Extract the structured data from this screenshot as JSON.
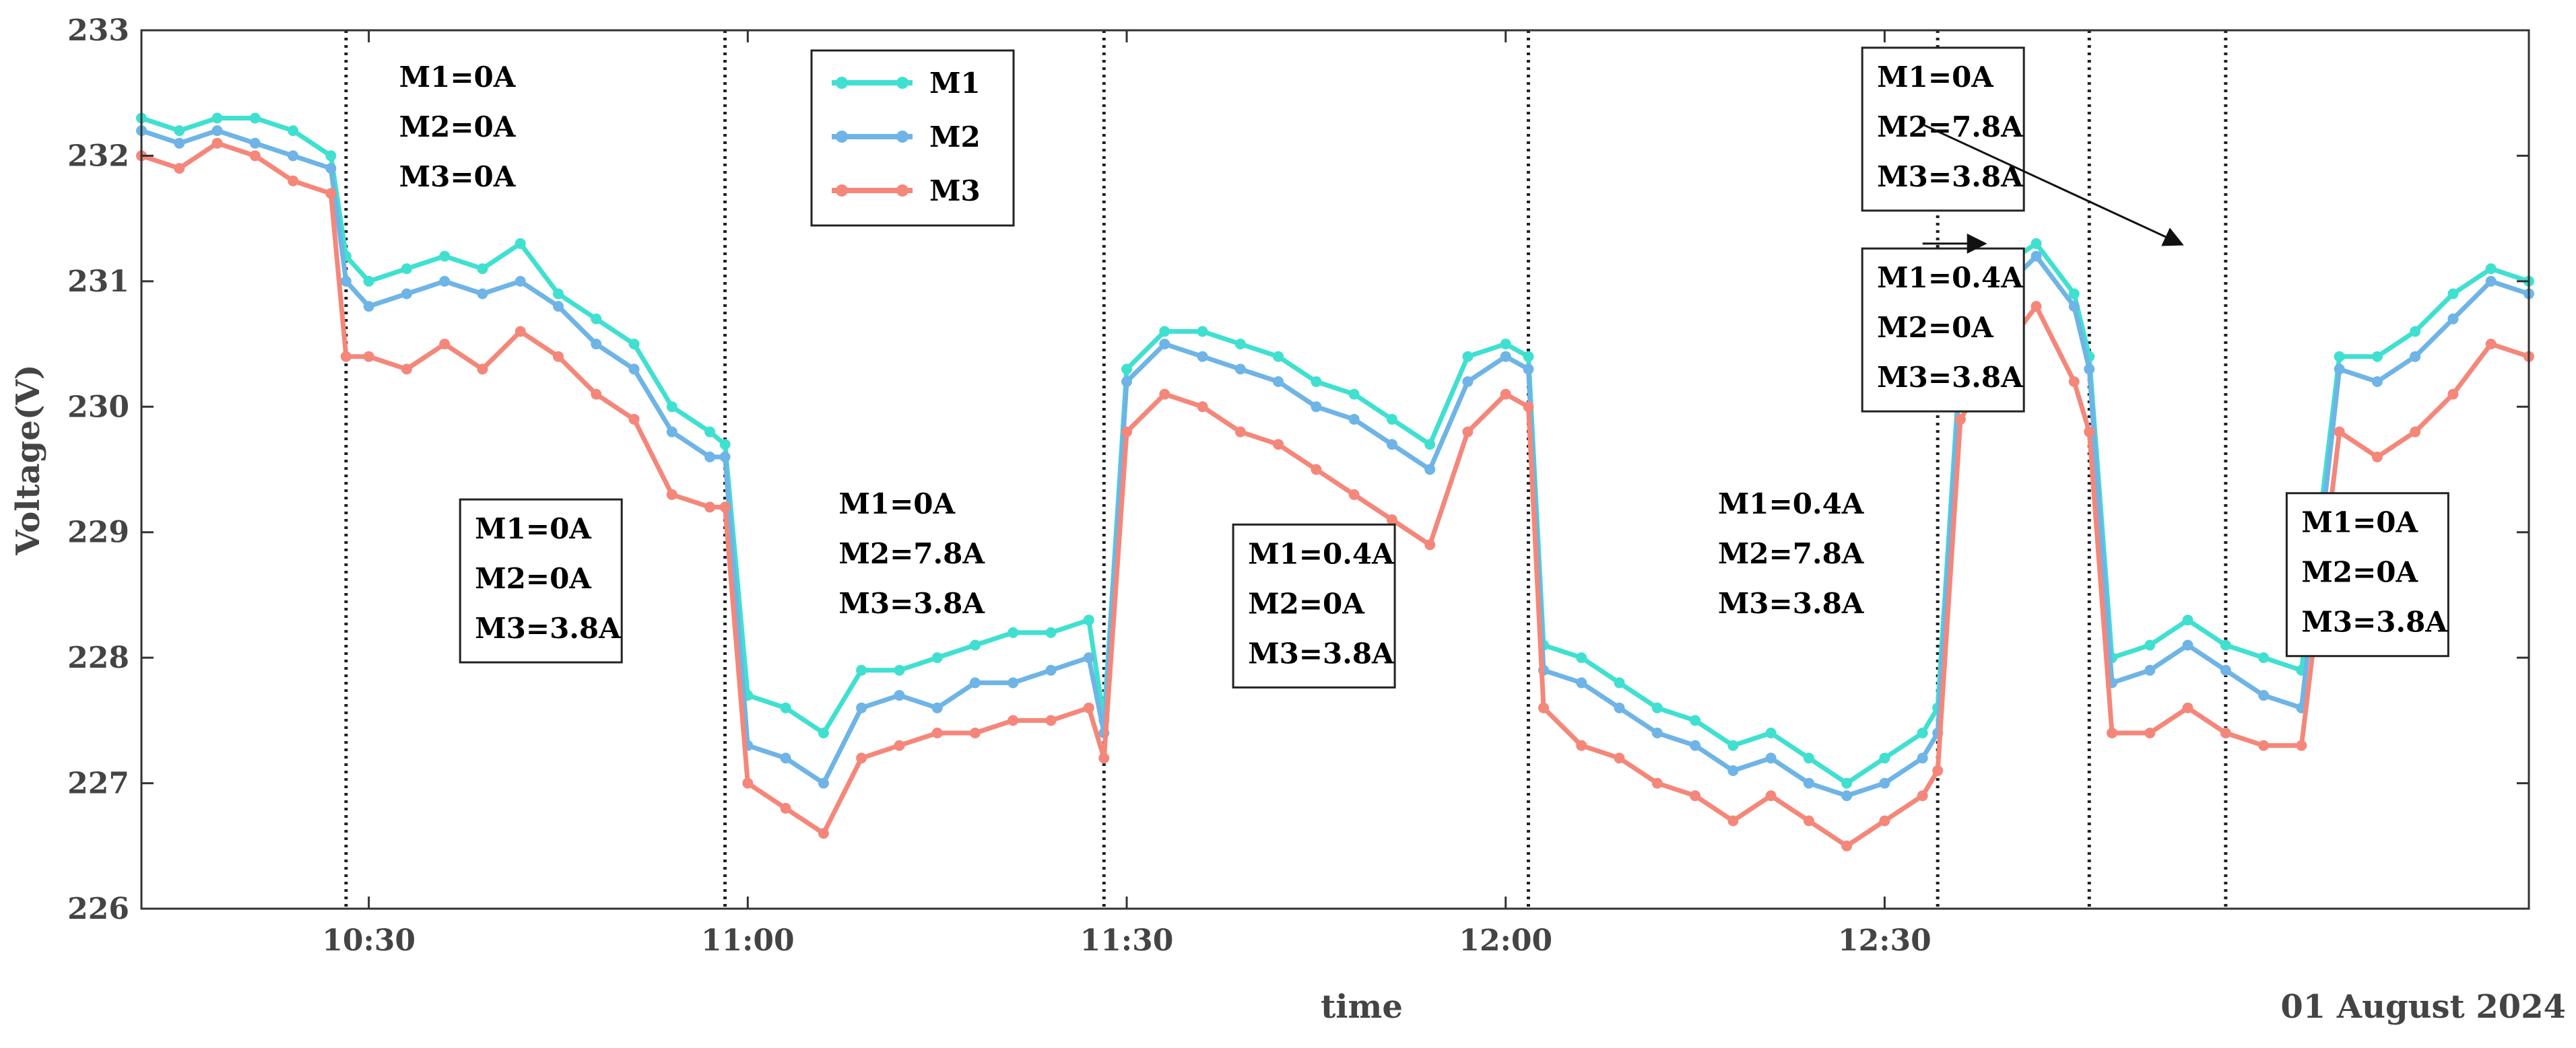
{
  "chart_data": {
    "type": "line",
    "title": "",
    "xlabel": "time",
    "ylabel": "Voltage(V)",
    "date_label": "01 August 2024",
    "xlim": [
      10.2,
      13.35
    ],
    "ylim": [
      226,
      233
    ],
    "yticks": [
      226,
      227,
      228,
      229,
      230,
      231,
      232,
      233
    ],
    "ytick_labels": [
      "226",
      "227",
      "228",
      "229",
      "230",
      "231",
      "232",
      "233"
    ],
    "xticks": [
      10.5,
      11.0,
      11.5,
      12.0,
      12.5
    ],
    "xtick_labels": [
      "10:30",
      "11:00",
      "11:30",
      "12:00",
      "12:30"
    ],
    "event_lines": [
      10.47,
      10.97,
      11.47,
      12.03,
      12.57,
      12.77,
      12.95
    ],
    "legend": {
      "position": "top-center",
      "entries": [
        "M1",
        "M2",
        "M3"
      ]
    },
    "series": [
      {
        "name": "M1",
        "color": "#40E0D0",
        "x": [
          10.2,
          10.25,
          10.3,
          10.35,
          10.4,
          10.45,
          10.47,
          10.5,
          10.55,
          10.6,
          10.65,
          10.7,
          10.75,
          10.8,
          10.85,
          10.9,
          10.95,
          10.97,
          11.0,
          11.05,
          11.1,
          11.15,
          11.2,
          11.25,
          11.3,
          11.35,
          11.4,
          11.45,
          11.47,
          11.5,
          11.55,
          11.6,
          11.65,
          11.7,
          11.75,
          11.8,
          11.85,
          11.9,
          11.95,
          12.0,
          12.03,
          12.05,
          12.1,
          12.15,
          12.2,
          12.25,
          12.3,
          12.35,
          12.4,
          12.45,
          12.5,
          12.55,
          12.57,
          12.6,
          12.65,
          12.7,
          12.75,
          12.77,
          12.8,
          12.85,
          12.9,
          12.95,
          13.0,
          13.05,
          13.1,
          13.15,
          13.2,
          13.25,
          13.3,
          13.35
        ],
        "y": [
          232.3,
          232.2,
          232.3,
          232.3,
          232.2,
          232.0,
          231.2,
          231.0,
          231.1,
          231.2,
          231.1,
          231.3,
          230.9,
          230.7,
          230.5,
          230.0,
          229.8,
          229.7,
          227.7,
          227.6,
          227.4,
          227.9,
          227.9,
          228.0,
          228.1,
          228.2,
          228.2,
          228.3,
          227.5,
          230.3,
          230.6,
          230.6,
          230.5,
          230.4,
          230.2,
          230.1,
          229.9,
          229.7,
          230.4,
          230.5,
          230.4,
          228.1,
          228.0,
          227.8,
          227.6,
          227.5,
          227.3,
          227.4,
          227.2,
          227.0,
          227.2,
          227.4,
          227.6,
          230.4,
          231.1,
          231.3,
          230.9,
          230.4,
          228.0,
          228.1,
          228.3,
          228.1,
          228.0,
          227.9,
          230.4,
          230.4,
          230.6,
          230.9,
          231.1,
          231.0
        ]
      },
      {
        "name": "M2",
        "color": "#6EB4E6",
        "x": [
          10.2,
          10.25,
          10.3,
          10.35,
          10.4,
          10.45,
          10.47,
          10.5,
          10.55,
          10.6,
          10.65,
          10.7,
          10.75,
          10.8,
          10.85,
          10.9,
          10.95,
          10.97,
          11.0,
          11.05,
          11.1,
          11.15,
          11.2,
          11.25,
          11.3,
          11.35,
          11.4,
          11.45,
          11.47,
          11.5,
          11.55,
          11.6,
          11.65,
          11.7,
          11.75,
          11.8,
          11.85,
          11.9,
          11.95,
          12.0,
          12.03,
          12.05,
          12.1,
          12.15,
          12.2,
          12.25,
          12.3,
          12.35,
          12.4,
          12.45,
          12.5,
          12.55,
          12.57,
          12.6,
          12.65,
          12.7,
          12.75,
          12.77,
          12.8,
          12.85,
          12.9,
          12.95,
          13.0,
          13.05,
          13.1,
          13.15,
          13.2,
          13.25,
          13.3,
          13.35
        ],
        "y": [
          232.2,
          232.1,
          232.2,
          232.1,
          232.0,
          231.9,
          231.0,
          230.8,
          230.9,
          231.0,
          230.9,
          231.0,
          230.8,
          230.5,
          230.3,
          229.8,
          229.6,
          229.6,
          227.3,
          227.2,
          227.0,
          227.6,
          227.7,
          227.6,
          227.8,
          227.8,
          227.9,
          228.0,
          227.4,
          230.2,
          230.5,
          230.4,
          230.3,
          230.2,
          230.0,
          229.9,
          229.7,
          229.5,
          230.2,
          230.4,
          230.3,
          227.9,
          227.8,
          227.6,
          227.4,
          227.3,
          227.1,
          227.2,
          227.0,
          226.9,
          227.0,
          227.2,
          227.4,
          230.3,
          230.9,
          231.2,
          230.8,
          230.3,
          227.8,
          227.9,
          228.1,
          227.9,
          227.7,
          227.6,
          230.3,
          230.2,
          230.4,
          230.7,
          231.0,
          230.9
        ]
      },
      {
        "name": "M3",
        "color": "#F4877A",
        "x": [
          10.2,
          10.25,
          10.3,
          10.35,
          10.4,
          10.45,
          10.47,
          10.5,
          10.55,
          10.6,
          10.65,
          10.7,
          10.75,
          10.8,
          10.85,
          10.9,
          10.95,
          10.97,
          11.0,
          11.05,
          11.1,
          11.15,
          11.2,
          11.25,
          11.3,
          11.35,
          11.4,
          11.45,
          11.47,
          11.5,
          11.55,
          11.6,
          11.65,
          11.7,
          11.75,
          11.8,
          11.85,
          11.9,
          11.95,
          12.0,
          12.03,
          12.05,
          12.1,
          12.15,
          12.2,
          12.25,
          12.3,
          12.35,
          12.4,
          12.45,
          12.5,
          12.55,
          12.57,
          12.6,
          12.65,
          12.7,
          12.75,
          12.77,
          12.8,
          12.85,
          12.9,
          12.95,
          13.0,
          13.05,
          13.1,
          13.15,
          13.2,
          13.25,
          13.3,
          13.35
        ],
        "y": [
          232.0,
          231.9,
          232.1,
          232.0,
          231.8,
          231.7,
          230.4,
          230.4,
          230.3,
          230.5,
          230.3,
          230.6,
          230.4,
          230.1,
          229.9,
          229.3,
          229.2,
          229.2,
          227.0,
          226.8,
          226.6,
          227.2,
          227.3,
          227.4,
          227.4,
          227.5,
          227.5,
          227.6,
          227.2,
          229.8,
          230.1,
          230.0,
          229.8,
          229.7,
          229.5,
          229.3,
          229.1,
          228.9,
          229.8,
          230.1,
          230.0,
          227.6,
          227.3,
          227.2,
          227.0,
          226.9,
          226.7,
          226.9,
          226.7,
          226.5,
          226.7,
          226.9,
          227.1,
          229.9,
          230.4,
          230.8,
          230.2,
          229.8,
          227.4,
          227.4,
          227.6,
          227.4,
          227.3,
          227.3,
          229.8,
          229.6,
          229.8,
          230.1,
          230.5,
          230.4
        ]
      }
    ],
    "annotations": [
      {
        "lines": [
          "M1=0A",
          "M2=0A",
          "M3=0A"
        ],
        "anchor": [
          10.54,
          232.55
        ],
        "boxed": false
      },
      {
        "lines": [
          "M1=0A",
          "M2=0A",
          "M3=3.8A"
        ],
        "anchor": [
          10.64,
          228.95
        ],
        "boxed": true
      },
      {
        "lines": [
          "M1=0A",
          "M2=7.8A",
          "M3=3.8A"
        ],
        "anchor": [
          11.12,
          229.15
        ],
        "boxed": false
      },
      {
        "lines": [
          "M1=0.4A",
          "M2=0A",
          "M3=3.8A"
        ],
        "anchor": [
          11.66,
          228.75
        ],
        "boxed": true
      },
      {
        "lines": [
          "M1=0.4A",
          "M2=7.8A",
          "M3=3.8A"
        ],
        "anchor": [
          12.28,
          229.15
        ],
        "boxed": false
      },
      {
        "lines": [
          "M1=0A",
          "M2=7.8A",
          "M3=3.8A"
        ],
        "anchor": [
          12.49,
          232.55
        ],
        "boxed": true
      },
      {
        "lines": [
          "M1=0.4A",
          "M2=0A",
          "M3=3.8A"
        ],
        "anchor": [
          12.49,
          230.95
        ],
        "boxed": true
      },
      {
        "lines": [
          "M1=0A",
          "M2=0A",
          "M3=3.8A"
        ],
        "anchor": [
          13.05,
          229.0
        ],
        "boxed": true
      }
    ],
    "arrows": [
      {
        "from": [
          12.55,
          232.25
        ],
        "to": [
          12.89,
          231.3
        ]
      },
      {
        "from": [
          12.55,
          231.3
        ],
        "to": [
          12.63,
          231.3
        ]
      }
    ]
  }
}
